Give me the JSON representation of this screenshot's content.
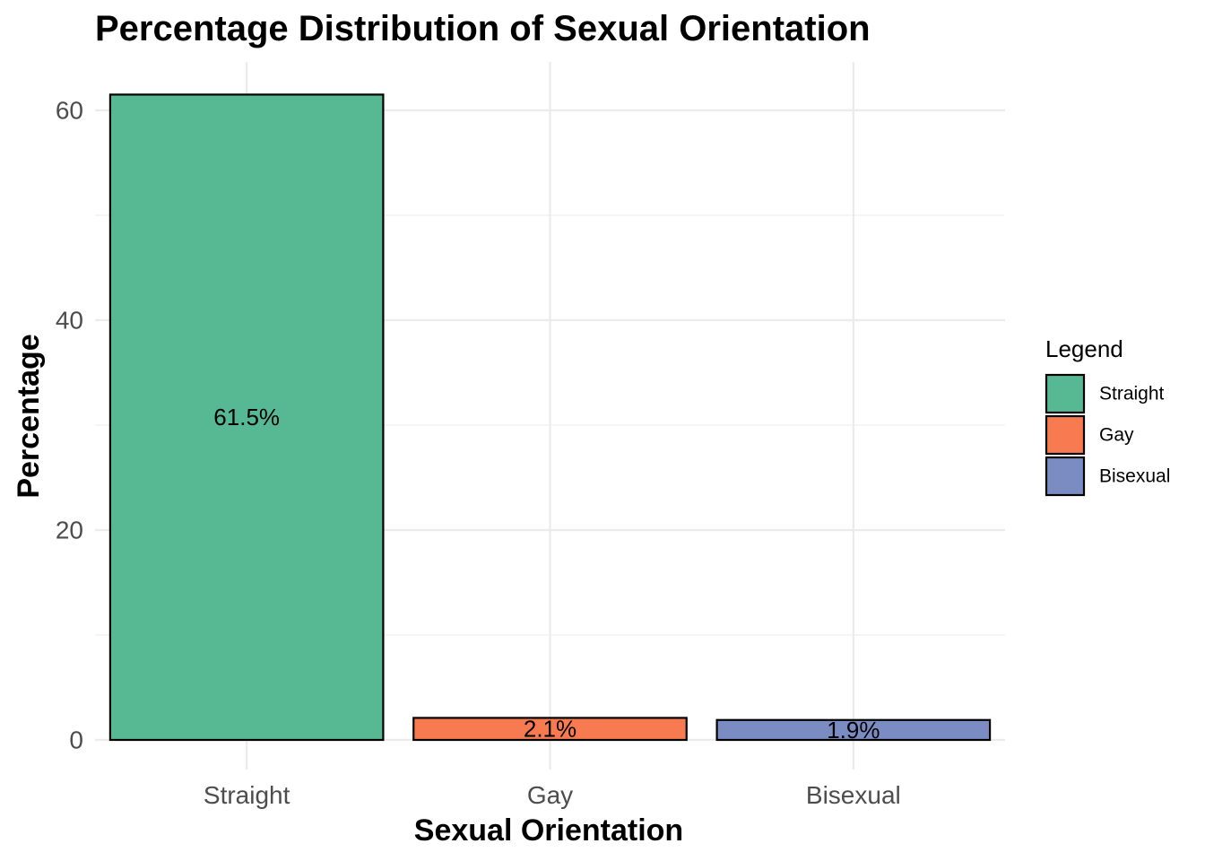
{
  "chart_data": {
    "type": "bar",
    "title": "Percentage Distribution of Sexual Orientation",
    "xlabel": "Sexual Orientation",
    "ylabel": "Percentage",
    "categories": [
      "Straight",
      "Gay",
      "Bisexual"
    ],
    "values": [
      61.5,
      2.1,
      1.9
    ],
    "data_labels": [
      "61.5%",
      "2.1%",
      "1.9%"
    ],
    "colors": [
      "#57b994",
      "#f77a50",
      "#7b8cc2"
    ],
    "ylim": [
      0,
      63.4
    ],
    "y_ticks": [
      0,
      20,
      40,
      60
    ],
    "y_tick_labels": [
      "0",
      "20",
      "40",
      "60"
    ],
    "grid": true,
    "legend": {
      "title": "Legend",
      "placement": "right",
      "entries": [
        "Straight",
        "Gay",
        "Bisexual"
      ]
    }
  }
}
